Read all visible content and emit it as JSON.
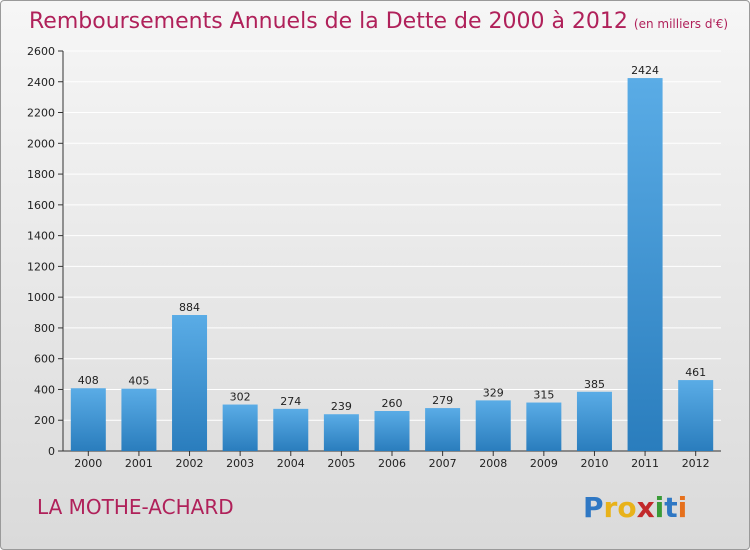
{
  "header": {
    "title": "Remboursements Annuels de la Dette de 2000 à 2012",
    "unit": "(en milliers d'€)"
  },
  "footer": {
    "commune": "LA MOTHE-ACHARD",
    "logo": [
      "P",
      "r",
      "o",
      "x",
      "i",
      "t",
      "i"
    ]
  },
  "colors": {
    "title": "#b0215a",
    "bar_light": "#5aace6",
    "bar_dark": "#2a7dbd",
    "grid": "#ffffff"
  },
  "chart_data": {
    "type": "bar",
    "title": "Remboursements Annuels de la Dette de 2000 à 2012",
    "categories": [
      "2000",
      "2001",
      "2002",
      "2003",
      "2004",
      "2005",
      "2006",
      "2007",
      "2008",
      "2009",
      "2010",
      "2011",
      "2012"
    ],
    "values": [
      408,
      405,
      884,
      302,
      274,
      239,
      260,
      279,
      329,
      315,
      385,
      2424,
      461
    ],
    "ylim": [
      0,
      2600
    ],
    "yticks": [
      0,
      200,
      400,
      600,
      800,
      1000,
      1200,
      1400,
      1600,
      1800,
      2000,
      2200,
      2400,
      2600
    ],
    "grid": true,
    "data_labels": true,
    "legend": "none"
  }
}
